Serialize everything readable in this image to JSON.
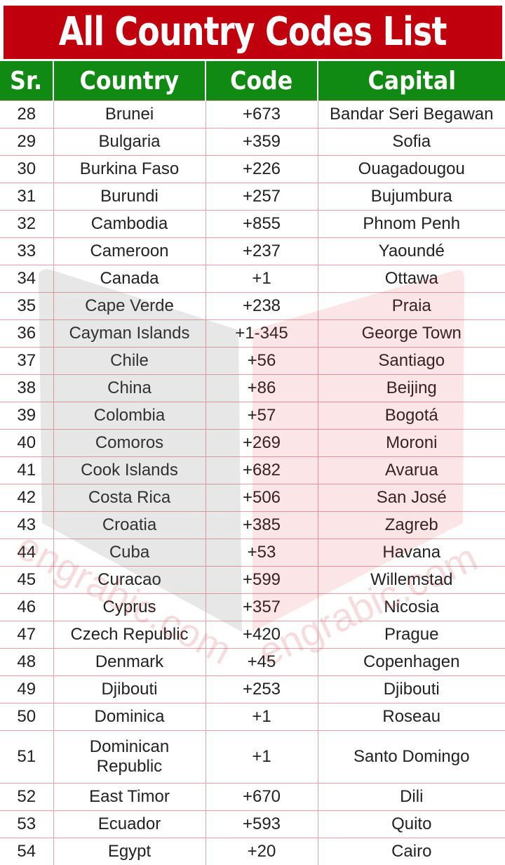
{
  "title": "All Country Codes List",
  "colors": {
    "title_bg": "#c0000c",
    "header_bg": "#108a12",
    "grid": "#e6a0a8"
  },
  "headers": [
    "Sr.",
    "Country",
    "Code",
    "Capital"
  ],
  "rows": [
    [
      "28",
      "Brunei",
      "+673",
      "Bandar Seri Begawan"
    ],
    [
      "29",
      "Bulgaria",
      "+359",
      "Sofia"
    ],
    [
      "30",
      "Burkina Faso",
      "+226",
      "Ouagadougou"
    ],
    [
      "31",
      "Burundi",
      "+257",
      "Bujumbura"
    ],
    [
      "32",
      "Cambodia",
      "+855",
      "Phnom Penh"
    ],
    [
      "33",
      "Cameroon",
      "+237",
      "Yaoundé"
    ],
    [
      "34",
      "Canada",
      "+1",
      "Ottawa"
    ],
    [
      "35",
      "Cape Verde",
      "+238",
      "Praia"
    ],
    [
      "36",
      "Cayman Islands",
      "+1-345",
      "George Town"
    ],
    [
      "37",
      "Chile",
      "+56",
      "Santiago"
    ],
    [
      "38",
      "China",
      "+86",
      "Beijing"
    ],
    [
      "39",
      "Colombia",
      "+57",
      "Bogotá"
    ],
    [
      "40",
      "Comoros",
      "+269",
      "Moroni"
    ],
    [
      "41",
      "Cook Islands",
      "+682",
      "Avarua"
    ],
    [
      "42",
      "Costa Rica",
      "+506",
      "San José"
    ],
    [
      "43",
      "Croatia",
      "+385",
      "Zagreb"
    ],
    [
      "44",
      "Cuba",
      "+53",
      "Havana"
    ],
    [
      "45",
      "Curacao",
      "+599",
      "Willemstad"
    ],
    [
      "46",
      "Cyprus",
      "+357",
      "Nicosia"
    ],
    [
      "47",
      "Czech Republic",
      "+420",
      "Prague"
    ],
    [
      "48",
      "Denmark",
      "+45",
      "Copenhagen"
    ],
    [
      "49",
      "Djibouti",
      "+253",
      "Djibouti"
    ],
    [
      "50",
      "Dominica",
      "+1",
      "Roseau"
    ],
    [
      "51",
      "Dominican Republic",
      "+1",
      "Santo Domingo"
    ],
    [
      "52",
      "East Timor",
      "+670",
      "Dili"
    ],
    [
      "53",
      "Ecuador",
      "+593",
      "Quito"
    ],
    [
      "54",
      "Egypt",
      "+20",
      "Cairo"
    ]
  ],
  "watermark": "engrabic.com"
}
